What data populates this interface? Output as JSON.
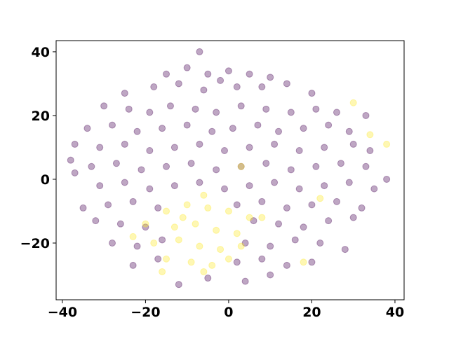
{
  "chart_data": {
    "type": "scatter",
    "xlim": [
      -41.5,
      42.2
    ],
    "ylim": [
      -37.8,
      43.5
    ],
    "xticks": [
      {
        "value": -40,
        "label": "−40"
      },
      {
        "value": -20,
        "label": "−20"
      },
      0,
      20,
      40
    ],
    "yticks": [
      {
        "value": -20,
        "label": "−20"
      },
      0,
      20,
      40
    ],
    "grid": false,
    "series": [
      {
        "color": "#440154",
        "x": [
          -15,
          -10,
          -5,
          0,
          5,
          10,
          -7,
          -25,
          -18,
          -12,
          -6,
          2,
          8,
          14,
          20,
          -2,
          -30,
          -24,
          -19,
          -14,
          -8,
          -3,
          3,
          9,
          15,
          21,
          26,
          33,
          -34,
          -28,
          -22,
          -16,
          -10,
          -4,
          1,
          7,
          12,
          18,
          24,
          29,
          -37,
          -31,
          -25,
          -19,
          -13,
          -7,
          -1,
          5,
          11,
          17,
          23,
          30,
          34,
          -38,
          -33,
          -27,
          -21,
          -15,
          -9,
          -3,
          3,
          9,
          15,
          21,
          27,
          33,
          -37,
          -31,
          -25,
          -19,
          -13,
          -7,
          -1,
          5,
          11,
          17,
          23,
          29,
          35,
          38,
          -35,
          -29,
          -23,
          -17,
          2,
          8,
          14,
          20,
          26,
          32,
          -32,
          -26,
          -20,
          6,
          12,
          18,
          24,
          30,
          -28,
          -22,
          -16,
          4,
          10,
          16,
          22,
          28,
          -23,
          -17,
          2,
          8,
          14,
          20,
          -5,
          4,
          10,
          -12
        ],
        "values": [
          33,
          35,
          33,
          34,
          33,
          32,
          40,
          27,
          29,
          30,
          28,
          29,
          29,
          30,
          27,
          31,
          23,
          22,
          21,
          23,
          22,
          21,
          23,
          22,
          21,
          22,
          21,
          20,
          16,
          17,
          15,
          16,
          17,
          15,
          16,
          17,
          15,
          16,
          17,
          15,
          11,
          10,
          11,
          9,
          10,
          11,
          9,
          10,
          11,
          9,
          10,
          11,
          9,
          6,
          4,
          5,
          3,
          4,
          5,
          3,
          4,
          5,
          3,
          4,
          5,
          4,
          2,
          -2,
          -1,
          -3,
          -2,
          -1,
          -3,
          -2,
          -1,
          -3,
          -2,
          -1,
          -3,
          0,
          -9,
          -8,
          -7,
          -9,
          -8,
          -7,
          -9,
          -8,
          -7,
          -9,
          -13,
          -14,
          -15,
          -13,
          -14,
          -15,
          -13,
          -12,
          -20,
          -21,
          -19,
          -20,
          -21,
          -19,
          -20,
          -22,
          -27,
          -25,
          -26,
          -25,
          -27,
          -26,
          -31,
          -32,
          -30,
          -33
        ]
      },
      {
        "color": "#fde725",
        "x": [
          -15,
          -10,
          -5,
          0,
          5,
          -13,
          -8,
          -3,
          2,
          -18,
          -12,
          -7,
          -2,
          3,
          -15,
          -9,
          -4,
          0,
          -20,
          -23,
          -6,
          -11,
          34,
          38,
          30,
          3,
          18,
          22,
          8,
          -16,
          -6
        ],
        "values": [
          -10,
          -8,
          -9,
          -10,
          -12,
          -15,
          -14,
          -16,
          -17,
          -20,
          -19,
          -21,
          -22,
          -21,
          -25,
          -26,
          -27,
          -25,
          -14,
          -18,
          -5,
          -12,
          14,
          11,
          24,
          4,
          -26,
          -6,
          -12,
          -29,
          -29
        ]
      }
    ]
  }
}
